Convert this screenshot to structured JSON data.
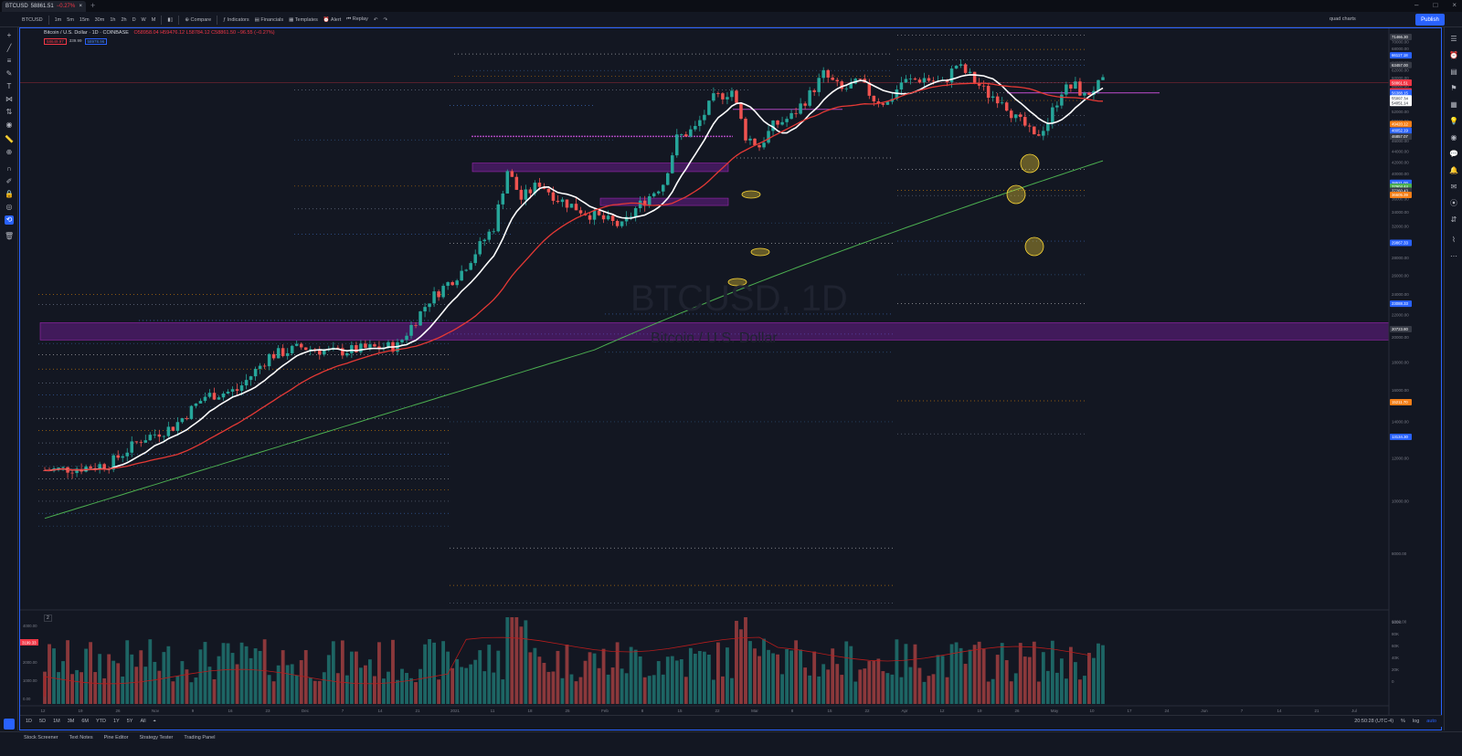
{
  "browser": {
    "tab_symbol": "BTCUSD",
    "tab_price": "58861.51",
    "tab_change": "−0.27%",
    "new_tab": "+"
  },
  "toolbar": {
    "symbol": "BTCUSD",
    "intervals": [
      "1m",
      "5m",
      "15m",
      "30m",
      "1h",
      "2h",
      "D",
      "W",
      "M"
    ],
    "compare": "Compare",
    "indicators": "Indicators",
    "financials": "Financials",
    "templates": "Templates",
    "alert": "Alert",
    "replay": "Replay",
    "layout_name": "quad charts",
    "publish": "Publish"
  },
  "legend": {
    "title": "Bitcoin / U.S. Dollar · 1D · COINBASE",
    "ohlc": "O58958.04 H59476.12 L58784.12 C58861.50 −96.55 (−0.27%)",
    "val1": "58649.97",
    "val2": "339.99",
    "val3": "58978.96"
  },
  "watermark": {
    "symbol": "BTCUSD, 1D",
    "name": "Bitcoin / U.S. Dollar"
  },
  "volume_legend": "2",
  "price_axis": {
    "labels": [
      "72000.00",
      "70000.00",
      "68000.00",
      "66000.00",
      "64000.00",
      "62000.00",
      "60000.00",
      "58000.00",
      "56000.00",
      "54000.00",
      "52000.00",
      "50000.00",
      "48000.00",
      "46000.00",
      "44000.00",
      "42000.00",
      "40000.00",
      "38000.00",
      "36000.00",
      "34000.00",
      "32000.00",
      "30000.00",
      "28000.00",
      "26000.00",
      "24000.00",
      "22000.00",
      "20000.00",
      "18000.00",
      "16000.00",
      "14000.00",
      "12000.00",
      "10000.00",
      "8000.00",
      "6000.00"
    ],
    "current_price": "58861.51",
    "tags": [
      {
        "value": "71466.30",
        "color": "#363a45"
      },
      {
        "value": "66117.18",
        "color": "#2962ff"
      },
      {
        "value": "63457.00",
        "color": "#363a45"
      },
      {
        "value": "58861.51",
        "color": "#f23645"
      },
      {
        "value": "56784.39",
        "color": "#f23645"
      },
      {
        "value": "56388.15",
        "color": "#2962ff"
      },
      {
        "value": "55097.34",
        "color": "#ffffff"
      },
      {
        "value": "54051.14",
        "color": "#ffffff"
      },
      {
        "value": "49420.12",
        "color": "#f57f17"
      },
      {
        "value": "48052.19",
        "color": "#2962ff"
      },
      {
        "value": "46857.07",
        "color": "#363a45"
      },
      {
        "value": "38521.00",
        "color": "#2962ff"
      },
      {
        "value": "37904.44",
        "color": "#4caf50"
      },
      {
        "value": "37260.43",
        "color": "#363a45"
      },
      {
        "value": "36605.39",
        "color": "#f57f17"
      },
      {
        "value": "29867.33",
        "color": "#2962ff"
      },
      {
        "value": "23088.33",
        "color": "#2962ff"
      },
      {
        "value": "20723.80",
        "color": "#363a45"
      },
      {
        "value": "15211.70",
        "color": "#f57f17"
      },
      {
        "value": "13134.30",
        "color": "#2962ff"
      }
    ]
  },
  "volume_axis": {
    "labels": [
      "100K",
      "80K",
      "60K",
      "40K",
      "20K",
      "0"
    ],
    "left_labels": [
      "4000.00",
      "3000.00",
      "2000.00",
      "1000.00",
      "0.00"
    ],
    "left_tag": "3199.33"
  },
  "time_axis": {
    "labels": [
      "12",
      "19",
      "26",
      "Nov",
      "9",
      "16",
      "23",
      "Dec",
      "7",
      "14",
      "21",
      "2021",
      "11",
      "18",
      "25",
      "Feb",
      "8",
      "15",
      "22",
      "Mar",
      "8",
      "15",
      "22",
      "Apr",
      "12",
      "19",
      "26",
      "May",
      "10",
      "17",
      "24",
      "Jun",
      "7",
      "14",
      "21",
      "Jul"
    ]
  },
  "bottom_bar": {
    "ranges": [
      "1D",
      "5D",
      "1M",
      "3M",
      "6M",
      "YTD",
      "1Y",
      "5Y",
      "All"
    ],
    "clock": "20:50:28 (UTC-4)",
    "pct": "%",
    "log": "log",
    "auto": "auto"
  },
  "bottom_panel": {
    "tabs": [
      "Stock Screener",
      "Text Notes",
      "Pine Editor",
      "Strategy Tester",
      "Trading Panel"
    ]
  },
  "colors": {
    "background": "#131722",
    "up": "#26a69a",
    "down": "#ef5350",
    "accent": "#2962ff",
    "zone": "#7b1fa2",
    "ma_fast": "#ffffff",
    "ma_mid": "#e53935",
    "ma_slow": "#4caf50"
  },
  "chart_data": {
    "type": "candlestick",
    "symbol": "BTCUSD",
    "interval": "1D",
    "scale": "log",
    "ylim": [
      6000,
      73000
    ],
    "moving_averages": [
      {
        "color": "#ffffff"
      },
      {
        "color": "#e53935"
      },
      {
        "color": "#4caf50"
      }
    ],
    "zones": [
      {
        "low": 19800,
        "high": 21300
      },
      {
        "low": 40400,
        "high": 41900
      },
      {
        "low": 35000,
        "high": 36100
      }
    ]
  }
}
